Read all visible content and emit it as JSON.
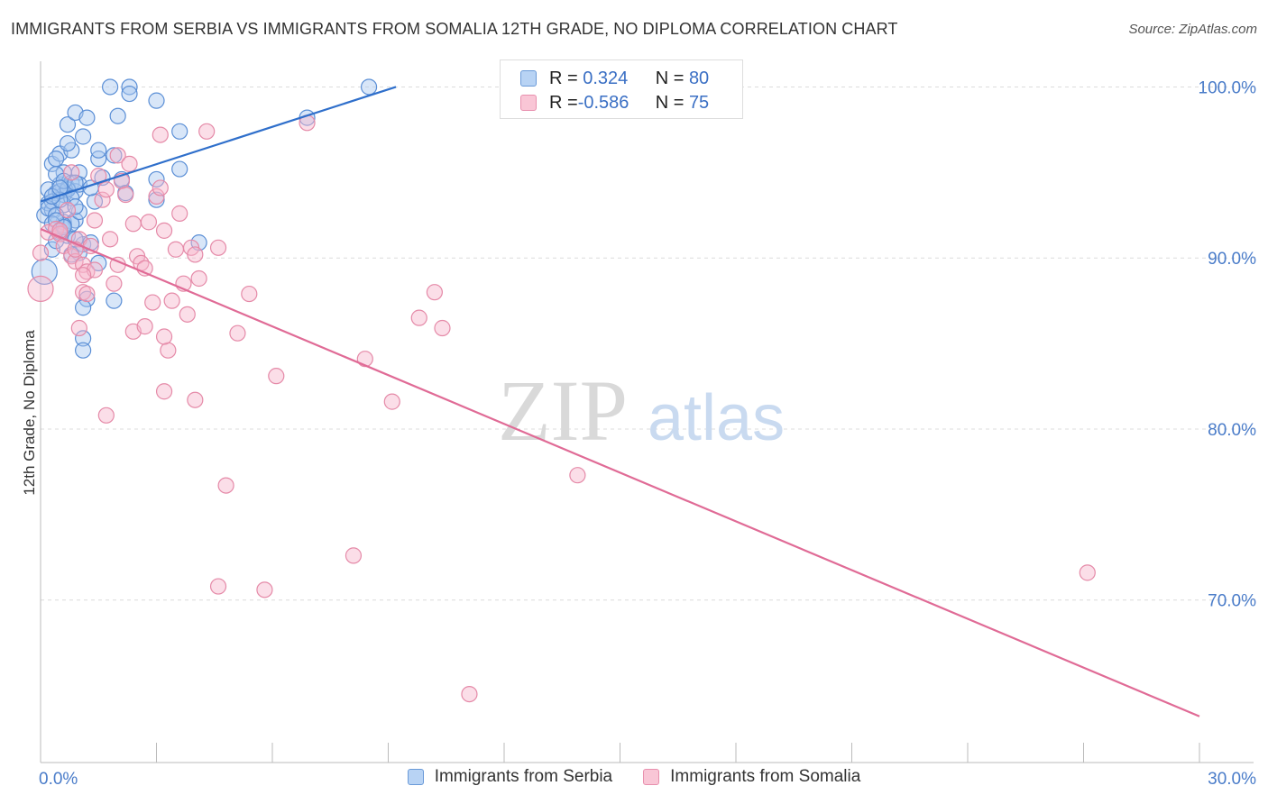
{
  "header": {
    "title": "IMMIGRANTS FROM SERBIA VS IMMIGRANTS FROM SOMALIA 12TH GRADE, NO DIPLOMA CORRELATION CHART",
    "source": "Source: ZipAtlas.com"
  },
  "watermark": {
    "zip": "ZIP",
    "atlas": "atlas"
  },
  "legend": {
    "serbia": {
      "r_label": "R = ",
      "r_value": " 0.324",
      "n_label": "N = ",
      "n_value": "80"
    },
    "somalia": {
      "r_label": "R = ",
      "r_value": "-0.586",
      "n_label": "N = ",
      "n_value": "75"
    }
  },
  "colors": {
    "serbia_fill": "#a8c8f0",
    "serbia_stroke": "#5b8fd6",
    "serbia_line": "#2f6fcb",
    "somalia_fill": "#f7b6cb",
    "somalia_stroke": "#e58aa8",
    "somalia_line": "#e06b96"
  },
  "chart_data": {
    "type": "scatter",
    "title": "IMMIGRANTS FROM SERBIA VS IMMIGRANTS FROM SOMALIA 12TH GRADE, NO DIPLOMA CORRELATION CHART",
    "xlabel": "",
    "ylabel": "12th Grade, No Diploma",
    "xlim": [
      0,
      30
    ],
    "ylim": [
      60.5,
      101.5
    ],
    "x_tick_labels": [
      "0.0%",
      "30.0%"
    ],
    "y_ticks": [
      70,
      80,
      90,
      100
    ],
    "y_tick_labels": [
      "70.0%",
      "80.0%",
      "90.0%",
      "100.0%"
    ],
    "grid": true,
    "legend_position": "top-center",
    "series": [
      {
        "name": "Immigrants from Serbia",
        "r": 0.324,
        "n": 80,
        "trend": {
          "x": [
            0.0,
            9.2
          ],
          "y": [
            93.3,
            100.0
          ]
        },
        "points": [
          [
            0.1,
            89.2
          ],
          [
            0.1,
            92.5
          ],
          [
            0.2,
            93.2
          ],
          [
            0.3,
            92.8
          ],
          [
            0.2,
            94.0
          ],
          [
            0.3,
            95.5
          ],
          [
            0.4,
            93.8
          ],
          [
            0.5,
            94.3
          ],
          [
            0.6,
            95.0
          ],
          [
            0.5,
            96.1
          ],
          [
            0.7,
            97.8
          ],
          [
            0.8,
            96.3
          ],
          [
            0.9,
            98.5
          ],
          [
            1.1,
            97.1
          ],
          [
            1.2,
            98.2
          ],
          [
            1.0,
            95.0
          ],
          [
            0.7,
            94.1
          ],
          [
            0.8,
            94.4
          ],
          [
            0.9,
            93.9
          ],
          [
            1.0,
            94.3
          ],
          [
            0.6,
            92.1
          ],
          [
            0.7,
            91.3
          ],
          [
            0.9,
            92.2
          ],
          [
            1.1,
            90.8
          ],
          [
            1.0,
            90.3
          ],
          [
            1.3,
            90.9
          ],
          [
            0.8,
            90.2
          ],
          [
            1.5,
            89.7
          ],
          [
            1.2,
            87.6
          ],
          [
            1.1,
            87.1
          ],
          [
            1.1,
            85.3
          ],
          [
            1.1,
            84.6
          ],
          [
            1.9,
            87.5
          ],
          [
            2.1,
            94.6
          ],
          [
            1.5,
            95.8
          ],
          [
            1.5,
            96.3
          ],
          [
            1.9,
            96.0
          ],
          [
            1.6,
            94.7
          ],
          [
            2.2,
            93.8
          ],
          [
            1.4,
            93.3
          ],
          [
            1.8,
            100.0
          ],
          [
            2.3,
            100.0
          ],
          [
            2.3,
            99.6
          ],
          [
            2.0,
            98.3
          ],
          [
            3.0,
            99.2
          ],
          [
            3.6,
            97.4
          ],
          [
            3.0,
            94.6
          ],
          [
            3.0,
            93.4
          ],
          [
            3.6,
            95.2
          ],
          [
            4.1,
            90.9
          ],
          [
            6.9,
            98.2
          ],
          [
            8.5,
            100.0
          ],
          [
            0.3,
            93.3
          ],
          [
            0.4,
            94.9
          ],
          [
            0.6,
            93.7
          ],
          [
            0.8,
            92.0
          ],
          [
            0.9,
            91.1
          ],
          [
            0.4,
            95.8
          ],
          [
            0.5,
            91.5
          ],
          [
            0.3,
            90.5
          ],
          [
            0.2,
            92.9
          ],
          [
            0.6,
            93.1
          ],
          [
            1.0,
            92.7
          ],
          [
            0.6,
            91.9
          ],
          [
            0.4,
            92.5
          ],
          [
            0.5,
            93.9
          ],
          [
            0.7,
            94.0
          ],
          [
            0.4,
            91.0
          ],
          [
            0.3,
            92.0
          ],
          [
            0.8,
            93.5
          ],
          [
            1.3,
            94.1
          ],
          [
            0.9,
            93.0
          ],
          [
            0.6,
            94.5
          ],
          [
            0.7,
            96.7
          ],
          [
            0.5,
            93.4
          ],
          [
            0.4,
            92.2
          ],
          [
            0.6,
            91.8
          ],
          [
            0.9,
            94.4
          ],
          [
            0.3,
            93.6
          ],
          [
            0.5,
            94.1
          ]
        ]
      },
      {
        "name": "Immigrants from Somalia",
        "r": -0.586,
        "n": 75,
        "trend": {
          "x": [
            0.0,
            30.0
          ],
          "y": [
            91.7,
            63.2
          ]
        },
        "points": [
          [
            0.0,
            88.2
          ],
          [
            0.0,
            90.3
          ],
          [
            0.2,
            91.5
          ],
          [
            0.4,
            91.7
          ],
          [
            0.5,
            91.4
          ],
          [
            0.6,
            90.7
          ],
          [
            0.8,
            90.1
          ],
          [
            0.9,
            89.8
          ],
          [
            1.0,
            91.1
          ],
          [
            1.1,
            89.6
          ],
          [
            1.2,
            89.2
          ],
          [
            1.3,
            90.7
          ],
          [
            1.0,
            85.9
          ],
          [
            1.1,
            88.0
          ],
          [
            1.2,
            87.9
          ],
          [
            1.4,
            92.2
          ],
          [
            1.5,
            94.8
          ],
          [
            1.6,
            93.4
          ],
          [
            1.7,
            94.0
          ],
          [
            1.8,
            91.1
          ],
          [
            1.9,
            88.5
          ],
          [
            2.0,
            96.0
          ],
          [
            2.1,
            94.5
          ],
          [
            2.2,
            93.7
          ],
          [
            2.3,
            95.5
          ],
          [
            2.4,
            92.0
          ],
          [
            2.5,
            90.1
          ],
          [
            2.6,
            89.7
          ],
          [
            2.7,
            89.4
          ],
          [
            2.8,
            92.1
          ],
          [
            2.9,
            87.4
          ],
          [
            3.0,
            93.6
          ],
          [
            3.1,
            97.2
          ],
          [
            3.2,
            91.6
          ],
          [
            3.3,
            84.6
          ],
          [
            3.4,
            87.5
          ],
          [
            3.5,
            90.5
          ],
          [
            3.6,
            92.6
          ],
          [
            3.7,
            88.5
          ],
          [
            3.8,
            86.7
          ],
          [
            3.9,
            90.6
          ],
          [
            4.0,
            90.2
          ],
          [
            4.1,
            88.8
          ],
          [
            4.3,
            97.4
          ],
          [
            4.6,
            90.6
          ],
          [
            4.8,
            76.7
          ],
          [
            5.1,
            85.6
          ],
          [
            5.4,
            87.9
          ],
          [
            6.1,
            83.1
          ],
          [
            6.9,
            97.9
          ],
          [
            8.1,
            72.6
          ],
          [
            8.4,
            84.1
          ],
          [
            9.1,
            81.6
          ],
          [
            9.8,
            86.5
          ],
          [
            10.2,
            88.0
          ],
          [
            10.4,
            85.9
          ],
          [
            13.9,
            77.3
          ],
          [
            27.1,
            71.6
          ],
          [
            11.1,
            64.5
          ],
          [
            2.4,
            85.7
          ],
          [
            3.2,
            85.4
          ],
          [
            3.2,
            82.2
          ],
          [
            4.0,
            81.7
          ],
          [
            1.7,
            80.8
          ],
          [
            4.6,
            70.8
          ],
          [
            5.8,
            70.6
          ],
          [
            3.1,
            94.1
          ],
          [
            2.7,
            86.0
          ],
          [
            0.8,
            95.0
          ],
          [
            1.4,
            89.3
          ],
          [
            0.5,
            91.6
          ],
          [
            0.9,
            90.5
          ],
          [
            1.1,
            89.0
          ],
          [
            0.7,
            92.8
          ],
          [
            2.0,
            89.6
          ]
        ]
      }
    ]
  },
  "bottom_legend": {
    "serbia": "Immigrants from Serbia",
    "somalia": "Immigrants from Somalia"
  }
}
